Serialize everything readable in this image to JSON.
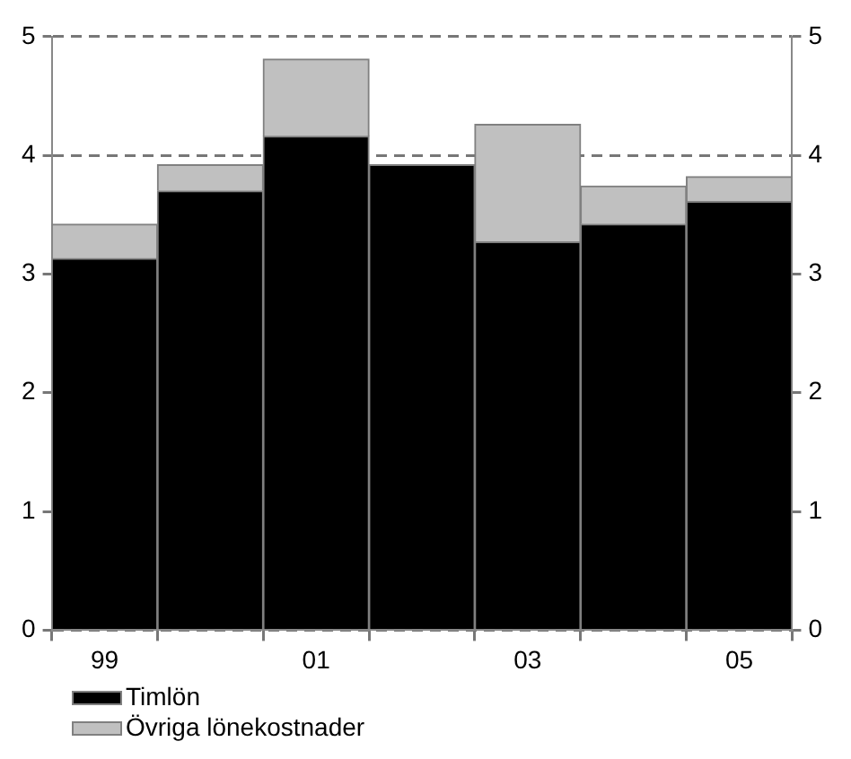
{
  "chart_data": {
    "type": "bar",
    "stacked": true,
    "categories": [
      "99",
      null,
      "01",
      null,
      "03",
      null,
      "05"
    ],
    "series": [
      {
        "name": "Timlön",
        "color": "#000000",
        "values": [
          3.13,
          3.7,
          4.16,
          3.92,
          3.27,
          3.42,
          3.61
        ]
      },
      {
        "name": "Övriga lönekostnader",
        "color": "#c0c0c0",
        "values": [
          0.29,
          0.22,
          0.65,
          0,
          0.99,
          0.32,
          0.21
        ]
      }
    ],
    "ylim": [
      0,
      5
    ],
    "yticks": [
      0,
      1,
      2,
      3,
      4,
      5
    ],
    "y2lim": [
      0,
      5
    ],
    "y2ticks": [
      0,
      1,
      2,
      3,
      4,
      5
    ],
    "grid": "y",
    "legend": "bottom left"
  }
}
